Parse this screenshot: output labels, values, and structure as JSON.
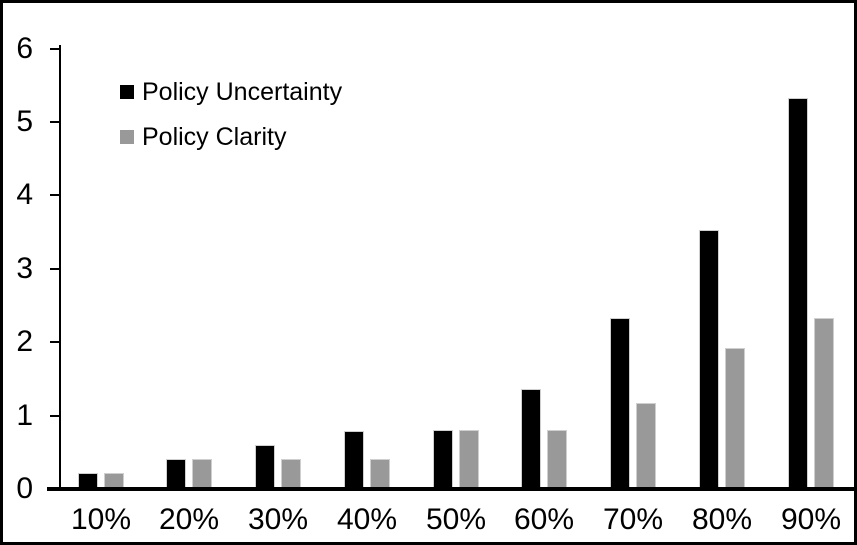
{
  "chart_data": {
    "type": "bar",
    "title": "",
    "xlabel": "",
    "ylabel": "",
    "categories": [
      "10%",
      "20%",
      "30%",
      "40%",
      "50%",
      "60%",
      "70%",
      "80%",
      "90%"
    ],
    "series": [
      {
        "name": "Policy Uncertainty",
        "color": "#000000",
        "values": [
          0.19,
          0.38,
          0.57,
          0.76,
          0.77,
          1.33,
          2.3,
          3.5,
          5.3
        ]
      },
      {
        "name": "Policy Clarity",
        "color": "#999999",
        "values": [
          0.19,
          0.38,
          0.38,
          0.38,
          0.77,
          0.77,
          1.15,
          1.9,
          2.3
        ]
      }
    ],
    "ylim": [
      0,
      6
    ],
    "yticks": [
      0,
      1,
      2,
      3,
      4,
      5,
      6
    ],
    "grid": false,
    "legend_position": "inside-top-left",
    "axis_color": "#000000",
    "background_color": "#ffffff",
    "frame_color": "#000000",
    "bar_outline_color": "#cfcfcf"
  }
}
